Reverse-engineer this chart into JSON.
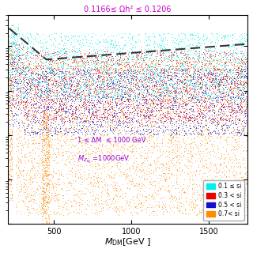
{
  "title": "0.1166≤ Ωh² ≤ 0.1206",
  "title_color": "#cc00cc",
  "xlabel": "$M_{\\mathrm{DM}}$[GeV ]",
  "xlim": [
    200,
    1750
  ],
  "ylim_log": [
    -13.0,
    -8.3
  ],
  "annotation1": "1 ≤ ΔM  ≤ 1000 GeV",
  "annotation2": "$M_{Z_{B_L}}$ =1000GeV",
  "annotation_color": "#9900cc",
  "legend_labels": [
    "0.1 ≤ si",
    "0.3 < si",
    "0.5 < si",
    "0.7< si"
  ],
  "legend_colors": [
    "#00eeee",
    "#ee0000",
    "#1111cc",
    "#ff8c00"
  ],
  "dot_colors_order": [
    "#ff8c00",
    "#1111cc",
    "#ee0000",
    "#00eeee"
  ],
  "background_color": "#ffffff",
  "seed": 42,
  "n_points": 2500
}
